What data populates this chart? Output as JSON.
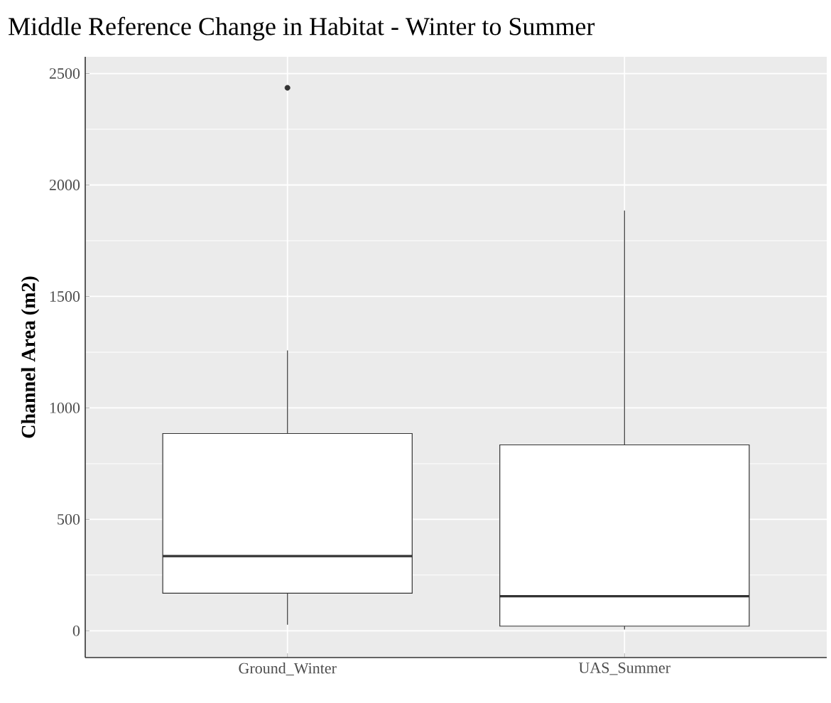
{
  "chart_data": {
    "type": "box",
    "title": "Middle Reference Change in Habitat - Winter to Summer",
    "ylabel": "Channel Area (m2)",
    "categories": [
      "Ground_Winter",
      "UAS_Summer"
    ],
    "boxes": [
      {
        "low": 27,
        "q1": 169,
        "median": 335,
        "q3": 885,
        "high": 1258,
        "outliers": [
          2436
        ]
      },
      {
        "low": 6,
        "q1": 21,
        "median": 155,
        "q3": 834,
        "high": 1885
      }
    ],
    "ylim": [
      -120,
      2575
    ],
    "yticks": [
      0,
      500,
      1000,
      1500,
      2000,
      2500
    ],
    "grid": true
  }
}
